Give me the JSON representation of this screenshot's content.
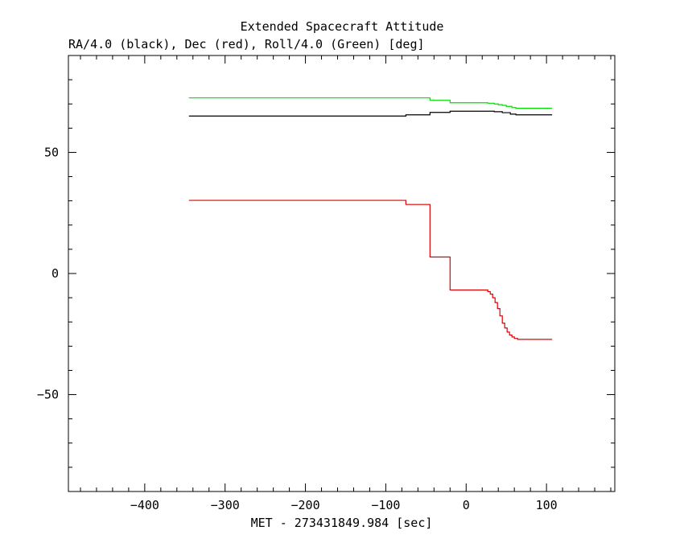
{
  "chart_data": {
    "type": "line",
    "title": "Extended Spacecraft Attitude",
    "subtitle": "RA/4.0 (black), Dec (red), Roll/4.0 (Green) [deg]",
    "xlabel": "MET - 273431849.984 [sec]",
    "ylabel": "",
    "xlim": [
      -495,
      185
    ],
    "ylim": [
      -90,
      90
    ],
    "x_ticks": [
      -400,
      -300,
      -200,
      -100,
      0,
      100
    ],
    "x_tick_labels": [
      "−400",
      "−300",
      "−200",
      "−100",
      "0",
      "100"
    ],
    "y_ticks": [
      -50,
      0,
      50
    ],
    "y_tick_labels": [
      "−50",
      "0",
      "50"
    ],
    "grid": false,
    "series": [
      {
        "color": "#00dd00",
        "step": true,
        "x": [
          -345,
          -45,
          -20,
          27,
          35,
          40,
          45,
          50,
          57,
          62,
          107
        ],
        "y": [
          72.5,
          71.5,
          70.5,
          70.3,
          70.0,
          69.7,
          69.4,
          69.0,
          68.5,
          68.2,
          68.2
        ]
      },
      {
        "color": "#000000",
        "step": true,
        "x": [
          -345,
          -75,
          -45,
          -20,
          35,
          45,
          55,
          62,
          107
        ],
        "y": [
          65.0,
          65.5,
          66.5,
          67.0,
          66.8,
          66.4,
          65.8,
          65.5,
          65.5
        ]
      },
      {
        "color": "#dd0000",
        "step": true,
        "x": [
          -345,
          -75,
          -45,
          -20,
          27,
          30,
          33,
          36,
          39,
          42,
          45,
          48,
          51,
          54,
          57,
          60,
          64,
          107
        ],
        "y": [
          30.2,
          28.5,
          6.8,
          -6.8,
          -7.5,
          -8.5,
          -10.0,
          -12.0,
          -14.5,
          -17.5,
          -20.5,
          -22.5,
          -24.2,
          -25.4,
          -26.2,
          -26.8,
          -27.2,
          -27.2
        ]
      }
    ]
  },
  "colors": {
    "axis": "#000000",
    "background": "#ffffff"
  }
}
